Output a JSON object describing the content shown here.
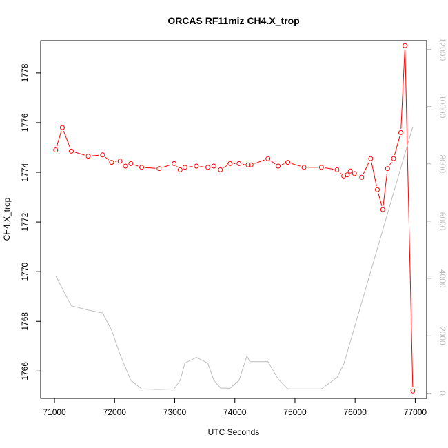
{
  "chart_data": {
    "type": "line",
    "title": "ORCAS RF11miz CH4.X_trop",
    "xlabel": "UTC Seconds",
    "ylabel": "CH4.X_trop",
    "xlim": [
      70770,
      77190
    ],
    "ylim": [
      1764.9,
      1779.3
    ],
    "y2lim": [
      -180,
      12300
    ],
    "grid": false,
    "x_ticks": [
      "71000",
      "72000",
      "73000",
      "74000",
      "75000",
      "76000",
      "77000"
    ],
    "y_ticks": [
      "1766",
      "1768",
      "1770",
      "1772",
      "1774",
      "1776",
      "1778"
    ],
    "y2_ticks": [
      "0",
      "2000",
      "4000",
      "6000",
      "8000",
      "10000",
      "12000"
    ],
    "colors": {
      "series": "#ff0000",
      "altitude": "#bebebe",
      "axis": "#000000",
      "right_axis": "#bebebe"
    },
    "series": [
      {
        "axis": "left",
        "style": "line+circles",
        "x": [
          71020,
          71130,
          71280,
          71560,
          71800,
          71950,
          72090,
          72180,
          72270,
          72450,
          72740,
          72990,
          73090,
          73170,
          73360,
          73550,
          73650,
          73760,
          73920,
          74070,
          74220,
          74270,
          74550,
          74720,
          74880,
          75150,
          75440,
          75700,
          75810,
          75870,
          75920,
          75990,
          76110,
          76260,
          76370,
          76460,
          76540,
          76640,
          76760,
          76830,
          76960
        ],
        "y": [
          1774.9,
          1775.8,
          1774.85,
          1774.65,
          1774.7,
          1774.4,
          1774.45,
          1774.25,
          1774.35,
          1774.2,
          1774.15,
          1774.35,
          1774.1,
          1774.2,
          1774.25,
          1774.2,
          1774.25,
          1774.1,
          1774.35,
          1774.35,
          1774.3,
          1774.3,
          1774.55,
          1774.25,
          1774.4,
          1774.2,
          1774.2,
          1774.1,
          1773.85,
          1773.9,
          1774.05,
          1773.95,
          1773.8,
          1774.55,
          1773.3,
          1772.5,
          1774.15,
          1774.55,
          1775.6,
          1779.1,
          1765.2
        ]
      },
      {
        "axis": "right",
        "style": "line",
        "x": [
          71020,
          71280,
          71560,
          71800,
          71950,
          72100,
          72270,
          72450,
          72740,
          72990,
          73090,
          73170,
          73360,
          73550,
          73650,
          73760,
          73920,
          74070,
          74200,
          74250,
          74550,
          74720,
          74880,
          75150,
          75440,
          75700,
          75810,
          76960
        ],
        "y": [
          4100,
          3050,
          2900,
          2800,
          2200,
          1300,
          450,
          150,
          130,
          150,
          450,
          1050,
          1250,
          1050,
          450,
          180,
          170,
          450,
          1300,
          1100,
          1100,
          500,
          150,
          150,
          150,
          550,
          1000,
          9300
        ]
      }
    ]
  }
}
